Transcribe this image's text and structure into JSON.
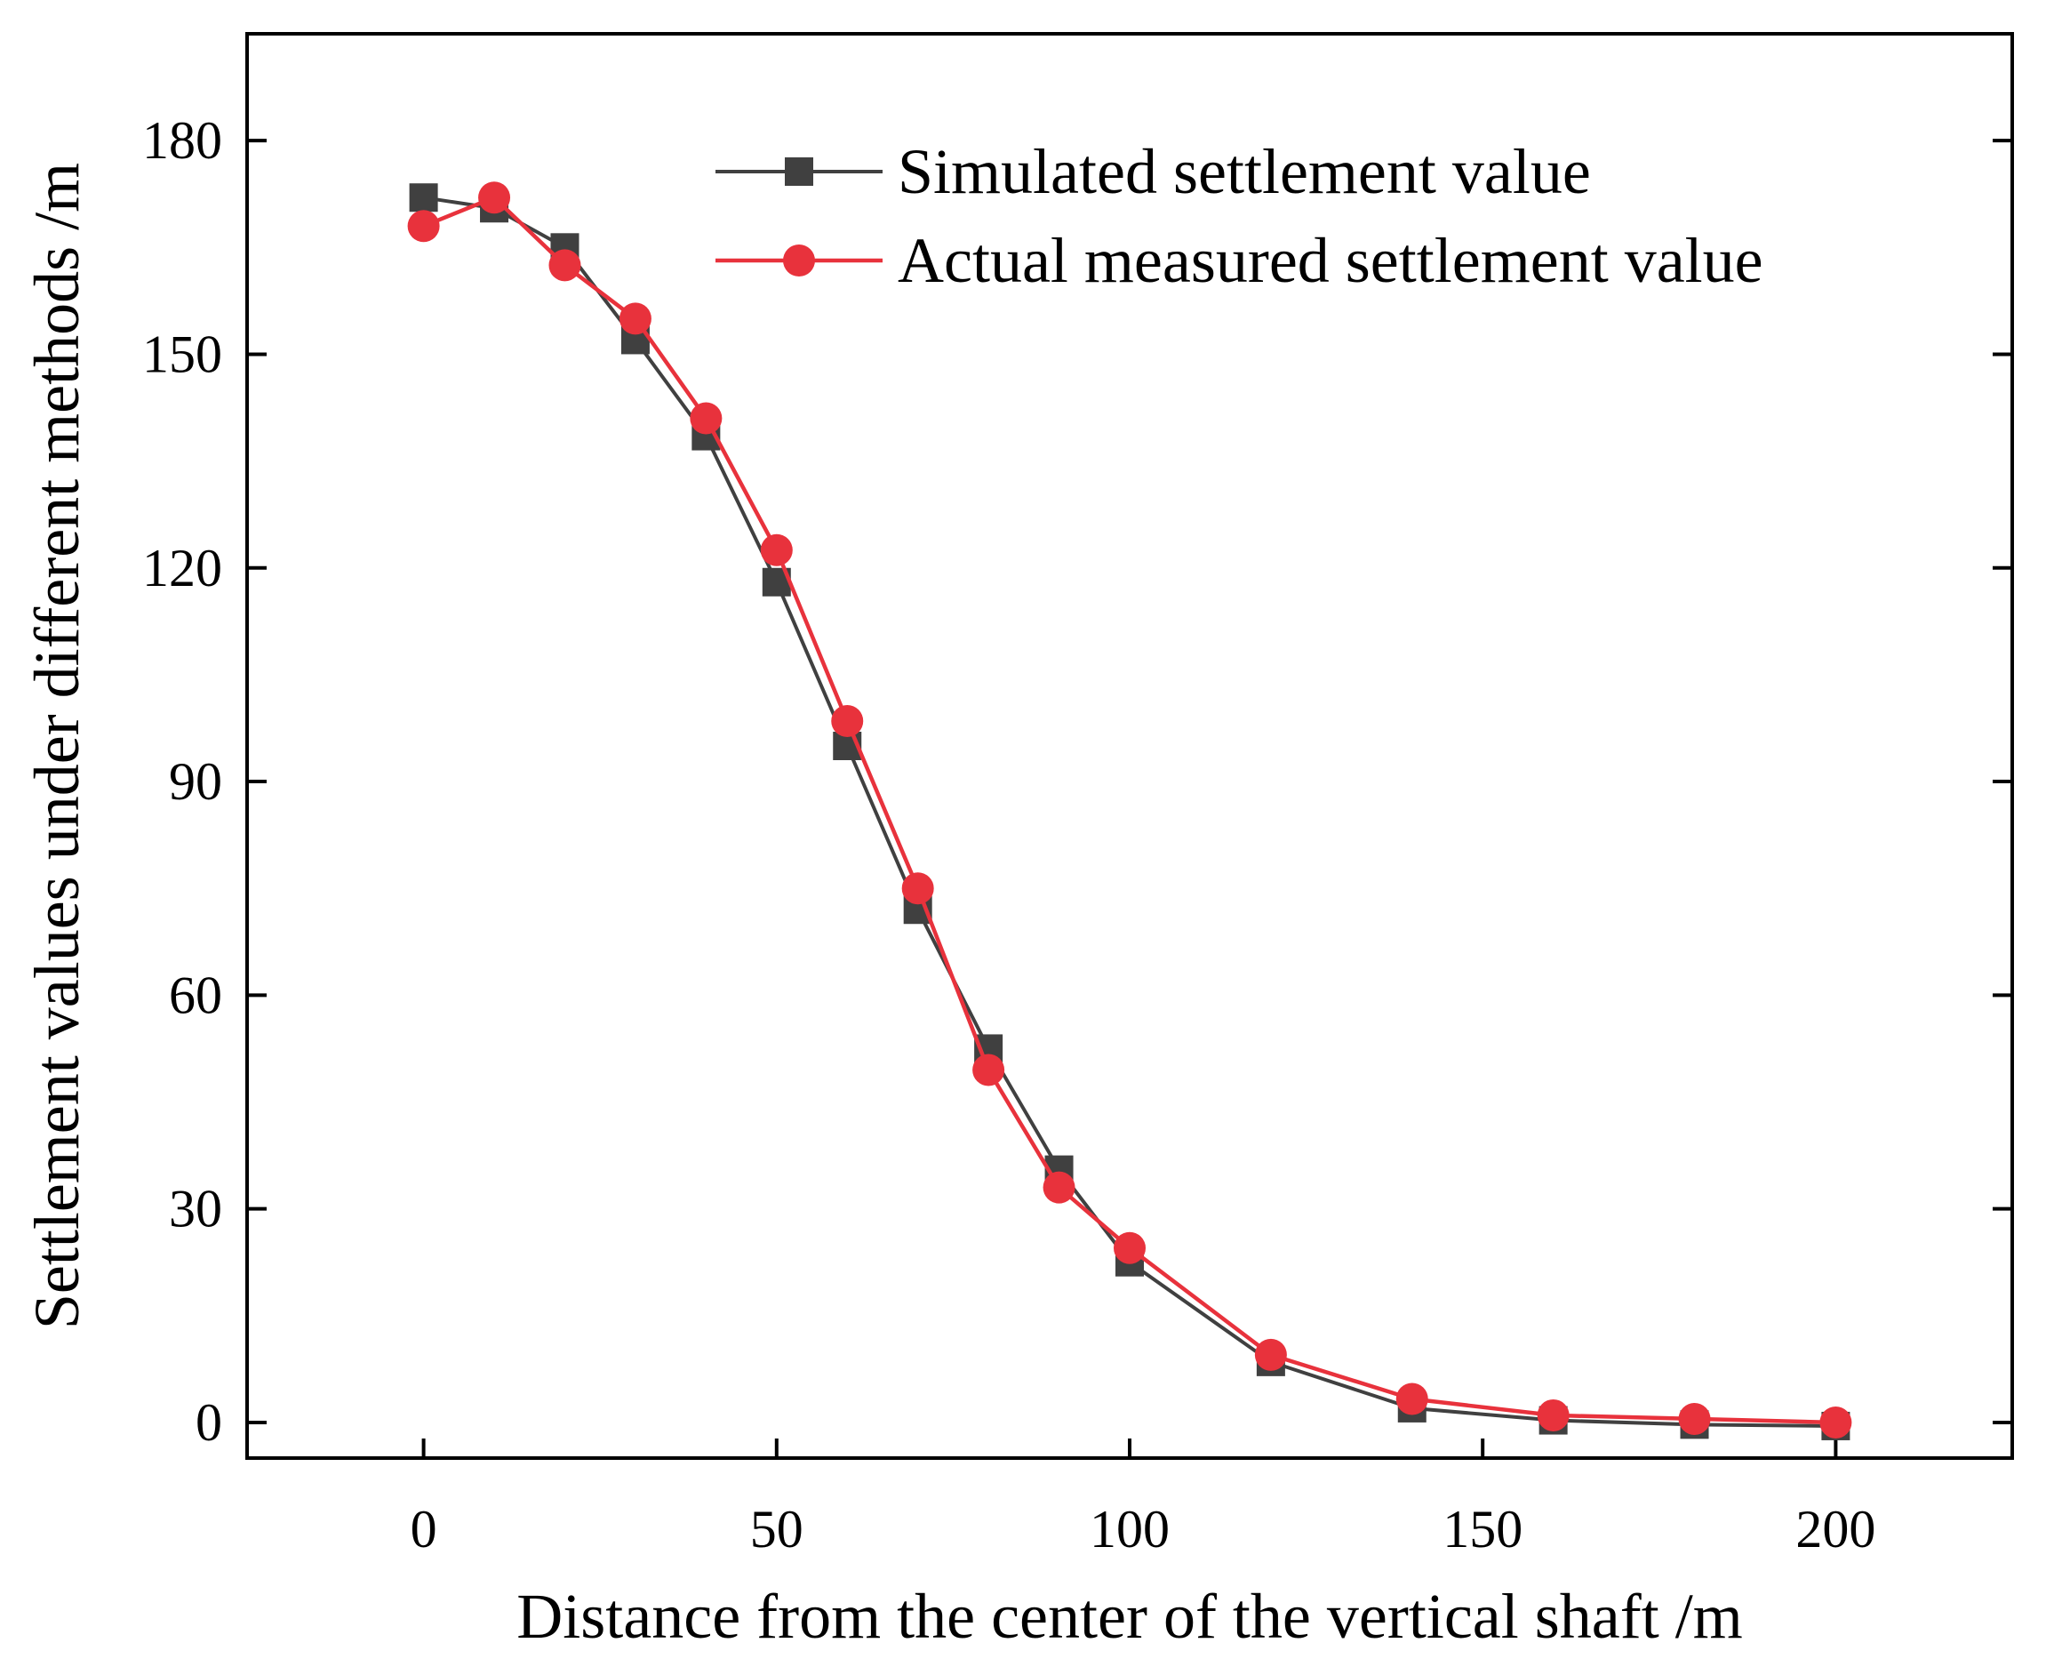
{
  "chart_data": {
    "type": "line",
    "title": "",
    "xlabel": "Distance from the center of the vertical shaft /m",
    "ylabel": "Settlement values under different methods /m",
    "xlim": [
      -25,
      225
    ],
    "ylim": [
      -5,
      195
    ],
    "xticks": [
      0,
      50,
      100,
      150,
      200
    ],
    "yticks": [
      0,
      30,
      60,
      90,
      120,
      150,
      180
    ],
    "xtick_labels": [
      "0",
      "50",
      "100",
      "150",
      "200"
    ],
    "ytick_labels": [
      "0",
      "30",
      "60",
      "90",
      "120",
      "150",
      "180"
    ],
    "grid": false,
    "legend_position": "top-right",
    "series": [
      {
        "name": "Simulated settlement value",
        "marker": "square",
        "color": "#404040",
        "x": [
          0,
          10,
          20,
          30,
          40,
          50,
          60,
          70,
          80,
          90,
          100,
          120,
          140,
          160,
          180,
          200
        ],
        "y": [
          172,
          170.5,
          165,
          152,
          138.5,
          118,
          95,
          72,
          52.5,
          35.5,
          22.5,
          8.5,
          2,
          0.3,
          -0.3,
          -0.5
        ]
      },
      {
        "name": "Actual measured settlement value",
        "marker": "circle",
        "color": "#e8323c",
        "x": [
          0,
          10,
          20,
          30,
          40,
          50,
          60,
          70,
          80,
          90,
          100,
          120,
          140,
          160,
          180,
          200
        ],
        "y": [
          168,
          172,
          162.5,
          155,
          141,
          122.5,
          98.5,
          75,
          49.5,
          33,
          24.5,
          9.5,
          3.3,
          1,
          0.5,
          0
        ]
      }
    ]
  }
}
